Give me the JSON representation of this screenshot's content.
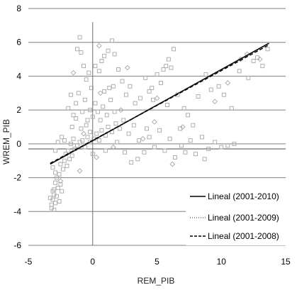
{
  "chart_data": {
    "type": "scatter",
    "xlabel": "REM_PIB",
    "ylabel": "WREM_PIB",
    "xlim": [
      -5,
      15
    ],
    "ylim": [
      -6,
      8
    ],
    "x_ticks": [
      -5,
      0,
      5,
      10,
      15
    ],
    "y_ticks": [
      -6,
      -4,
      -2,
      0,
      2,
      4,
      6,
      8
    ],
    "grid": "horizontal",
    "reference_lines": {
      "vertical_x": 0,
      "horizontal_y": -0.3
    },
    "legend_position": "right",
    "marker_color": "#a6a6a6",
    "series": [
      {
        "marker": "square",
        "points": [
          [
            -3.2,
            -3.6
          ],
          [
            -3.1,
            -3.3
          ],
          [
            -3.0,
            -3.0
          ],
          [
            -2.9,
            -3.5
          ],
          [
            -3.3,
            -3.2
          ],
          [
            -3.0,
            -2.7
          ],
          [
            -2.8,
            -3.1
          ],
          [
            -3.1,
            -2.8
          ],
          [
            -2.7,
            -2.6
          ],
          [
            -2.9,
            -2.3
          ],
          [
            -2.6,
            -3.4
          ],
          [
            -2.8,
            -2.0
          ],
          [
            -3.2,
            -3.8
          ],
          [
            -3.0,
            -3.9
          ],
          [
            -2.5,
            -2.4
          ],
          [
            -2.4,
            -2.8
          ],
          [
            -2.6,
            -1.8
          ],
          [
            -2.3,
            -1.5
          ],
          [
            -2.5,
            -1.2
          ],
          [
            -2.2,
            -1.0
          ],
          [
            -2.0,
            -1.3
          ],
          [
            -1.8,
            -0.9
          ],
          [
            -2.1,
            -0.6
          ],
          [
            -1.9,
            -0.4
          ],
          [
            -1.6,
            -0.7
          ],
          [
            -1.4,
            -0.3
          ],
          [
            -1.7,
            0.0
          ],
          [
            -1.2,
            -0.1
          ],
          [
            -1.0,
            0.1
          ],
          [
            -1.5,
            0.3
          ],
          [
            -0.8,
            0.2
          ],
          [
            -0.6,
            -0.2
          ],
          [
            -0.4,
            0.4
          ],
          [
            -0.2,
            0.1
          ],
          [
            0.1,
            0.3
          ],
          [
            0.3,
            0.6
          ],
          [
            0.5,
            0.2
          ],
          [
            0.7,
            0.8
          ],
          [
            1.0,
            0.5
          ],
          [
            1.2,
            1.0
          ],
          [
            1.5,
            0.7
          ],
          [
            1.8,
            1.2
          ],
          [
            2.1,
            0.9
          ],
          [
            2.4,
            1.4
          ],
          [
            2.8,
            0.6
          ],
          [
            3.2,
            1.1
          ],
          [
            3.6,
            0.2
          ],
          [
            4.0,
            -0.5
          ],
          [
            4.4,
            0.4
          ],
          [
            4.8,
            -0.2
          ],
          [
            5.2,
            0.8
          ],
          [
            5.6,
            -0.4
          ],
          [
            6.0,
            0.3
          ],
          [
            6.4,
            -0.8
          ],
          [
            6.8,
            0.9
          ],
          [
            7.2,
            -0.5
          ],
          [
            7.6,
            0.2
          ],
          [
            8.0,
            -0.6
          ],
          [
            8.5,
            0.4
          ],
          [
            9.0,
            -0.3
          ],
          [
            9.5,
            0.1
          ],
          [
            10.0,
            -0.2
          ],
          [
            10.5,
            -0.1
          ],
          [
            11.0,
            0.0
          ],
          [
            -1.2,
            5.6
          ],
          [
            -1.0,
            6.3
          ],
          [
            -0.9,
            5.4
          ],
          [
            -0.7,
            4.6
          ],
          [
            -0.5,
            3.8
          ],
          [
            -0.3,
            4.2
          ],
          [
            -0.1,
            3.3
          ],
          [
            0.2,
            4.6
          ],
          [
            0.5,
            4.3
          ],
          [
            0.7,
            4.9
          ],
          [
            0.9,
            5.2
          ],
          [
            1.2,
            5.5
          ],
          [
            1.5,
            6.1
          ],
          [
            1.7,
            5.3
          ],
          [
            2.0,
            4.4
          ],
          [
            1.6,
            3.4
          ],
          [
            2.3,
            3.7
          ],
          [
            2.6,
            2.9
          ],
          [
            2.9,
            3.4
          ],
          [
            3.3,
            2.4
          ],
          [
            3.7,
            2.7
          ],
          [
            4.1,
            3.9
          ],
          [
            4.4,
            3.1
          ],
          [
            4.7,
            2.6
          ],
          [
            5.0,
            4.1
          ],
          [
            5.3,
            3.6
          ],
          [
            5.7,
            4.6
          ],
          [
            5.9,
            5.0
          ],
          [
            6.3,
            5.6
          ],
          [
            6.1,
            4.5
          ],
          [
            5.5,
            4.4
          ],
          [
            4.6,
            3.3
          ],
          [
            5.8,
            2.3
          ],
          [
            6.6,
            2.9
          ],
          [
            7.1,
            2.1
          ],
          [
            7.4,
            1.7
          ],
          [
            8.2,
            2.8
          ],
          [
            8.8,
            4.1
          ],
          [
            9.2,
            3.2
          ],
          [
            9.8,
            3.4
          ],
          [
            10.2,
            2.9
          ],
          [
            10.8,
            2.1
          ],
          [
            11.4,
            4.3
          ],
          [
            12.1,
            3.9
          ],
          [
            12.8,
            5.1
          ],
          [
            13.2,
            4.6
          ],
          [
            13.6,
            5.6
          ],
          [
            12.5,
            4.9
          ],
          [
            -1.9,
            2.1
          ],
          [
            -1.7,
            2.9
          ],
          [
            -1.5,
            1.7
          ],
          [
            -1.3,
            2.4
          ],
          [
            -1.1,
            3.0
          ],
          [
            -0.8,
            1.9
          ],
          [
            -0.6,
            2.6
          ],
          [
            -0.4,
            1.4
          ],
          [
            -1.6,
            1.0
          ],
          [
            -1.3,
            1.5
          ],
          [
            -0.9,
            0.9
          ],
          [
            -0.5,
            1.1
          ],
          [
            0.0,
            1.6
          ],
          [
            0.4,
            1.9
          ],
          [
            0.8,
            2.2
          ],
          [
            1.1,
            1.7
          ],
          [
            1.4,
            2.6
          ],
          [
            1.7,
            1.9
          ],
          [
            0.6,
            1.4
          ],
          [
            0.2,
            2.4
          ],
          [
            -0.2,
            2.0
          ],
          [
            0.9,
            3.1
          ],
          [
            1.3,
            3.3
          ],
          [
            -2.4,
            0.4
          ],
          [
            -2.7,
            0.1
          ],
          [
            -2.9,
            -0.4
          ],
          [
            -3.1,
            -1.4
          ],
          [
            -2.9,
            -1.7
          ],
          [
            -2.2,
            0.2
          ],
          [
            -0.2,
            0.7
          ],
          [
            0.0,
            -0.6
          ],
          [
            1.0,
            -0.4
          ],
          [
            1.9,
            0.1
          ],
          [
            2.5,
            -0.5
          ],
          [
            3.0,
            -1.1
          ],
          [
            3.5,
            -0.9
          ],
          [
            4.2,
            0.9
          ],
          [
            6.9,
            -0.1
          ],
          [
            7.8,
            1.1
          ],
          [
            8.7,
            -0.9
          ]
        ]
      },
      {
        "marker": "diamond",
        "points": [
          [
            -1.5,
            4.2
          ],
          [
            0.5,
            5.8
          ],
          [
            0.6,
            3.0
          ],
          [
            2.7,
            4.5
          ],
          [
            5.0,
            2.7
          ],
          [
            7.0,
            1.0
          ],
          [
            9.5,
            2.5
          ],
          [
            10.5,
            3.6
          ],
          [
            12.0,
            5.3
          ],
          [
            13.0,
            5.0
          ],
          [
            -2.5,
            -2.2
          ],
          [
            -1.0,
            -1.6
          ],
          [
            0.3,
            -0.8
          ],
          [
            1.6,
            -0.2
          ],
          [
            3.9,
            0.3
          ],
          [
            6.2,
            -1.2
          ],
          [
            11.5,
            5.0
          ],
          [
            -0.7,
            0.6
          ],
          [
            2.2,
            2.0
          ],
          [
            4.8,
            1.3
          ]
        ]
      }
    ],
    "trendlines": [
      {
        "name": "Lineal (2001-2010)",
        "style": "solid",
        "x0": -3.3,
        "y0": -1.2,
        "x1": 13.7,
        "y1": 5.95
      },
      {
        "name": "Lineal (2001-2009)",
        "style": "dotted",
        "x0": -3.3,
        "y0": -1.17,
        "x1": 13.7,
        "y1": 5.9
      },
      {
        "name": "Lineal (2001-2008)",
        "style": "dashed",
        "x0": -3.3,
        "y0": -1.15,
        "x1": 13.7,
        "y1": 5.85
      }
    ]
  }
}
